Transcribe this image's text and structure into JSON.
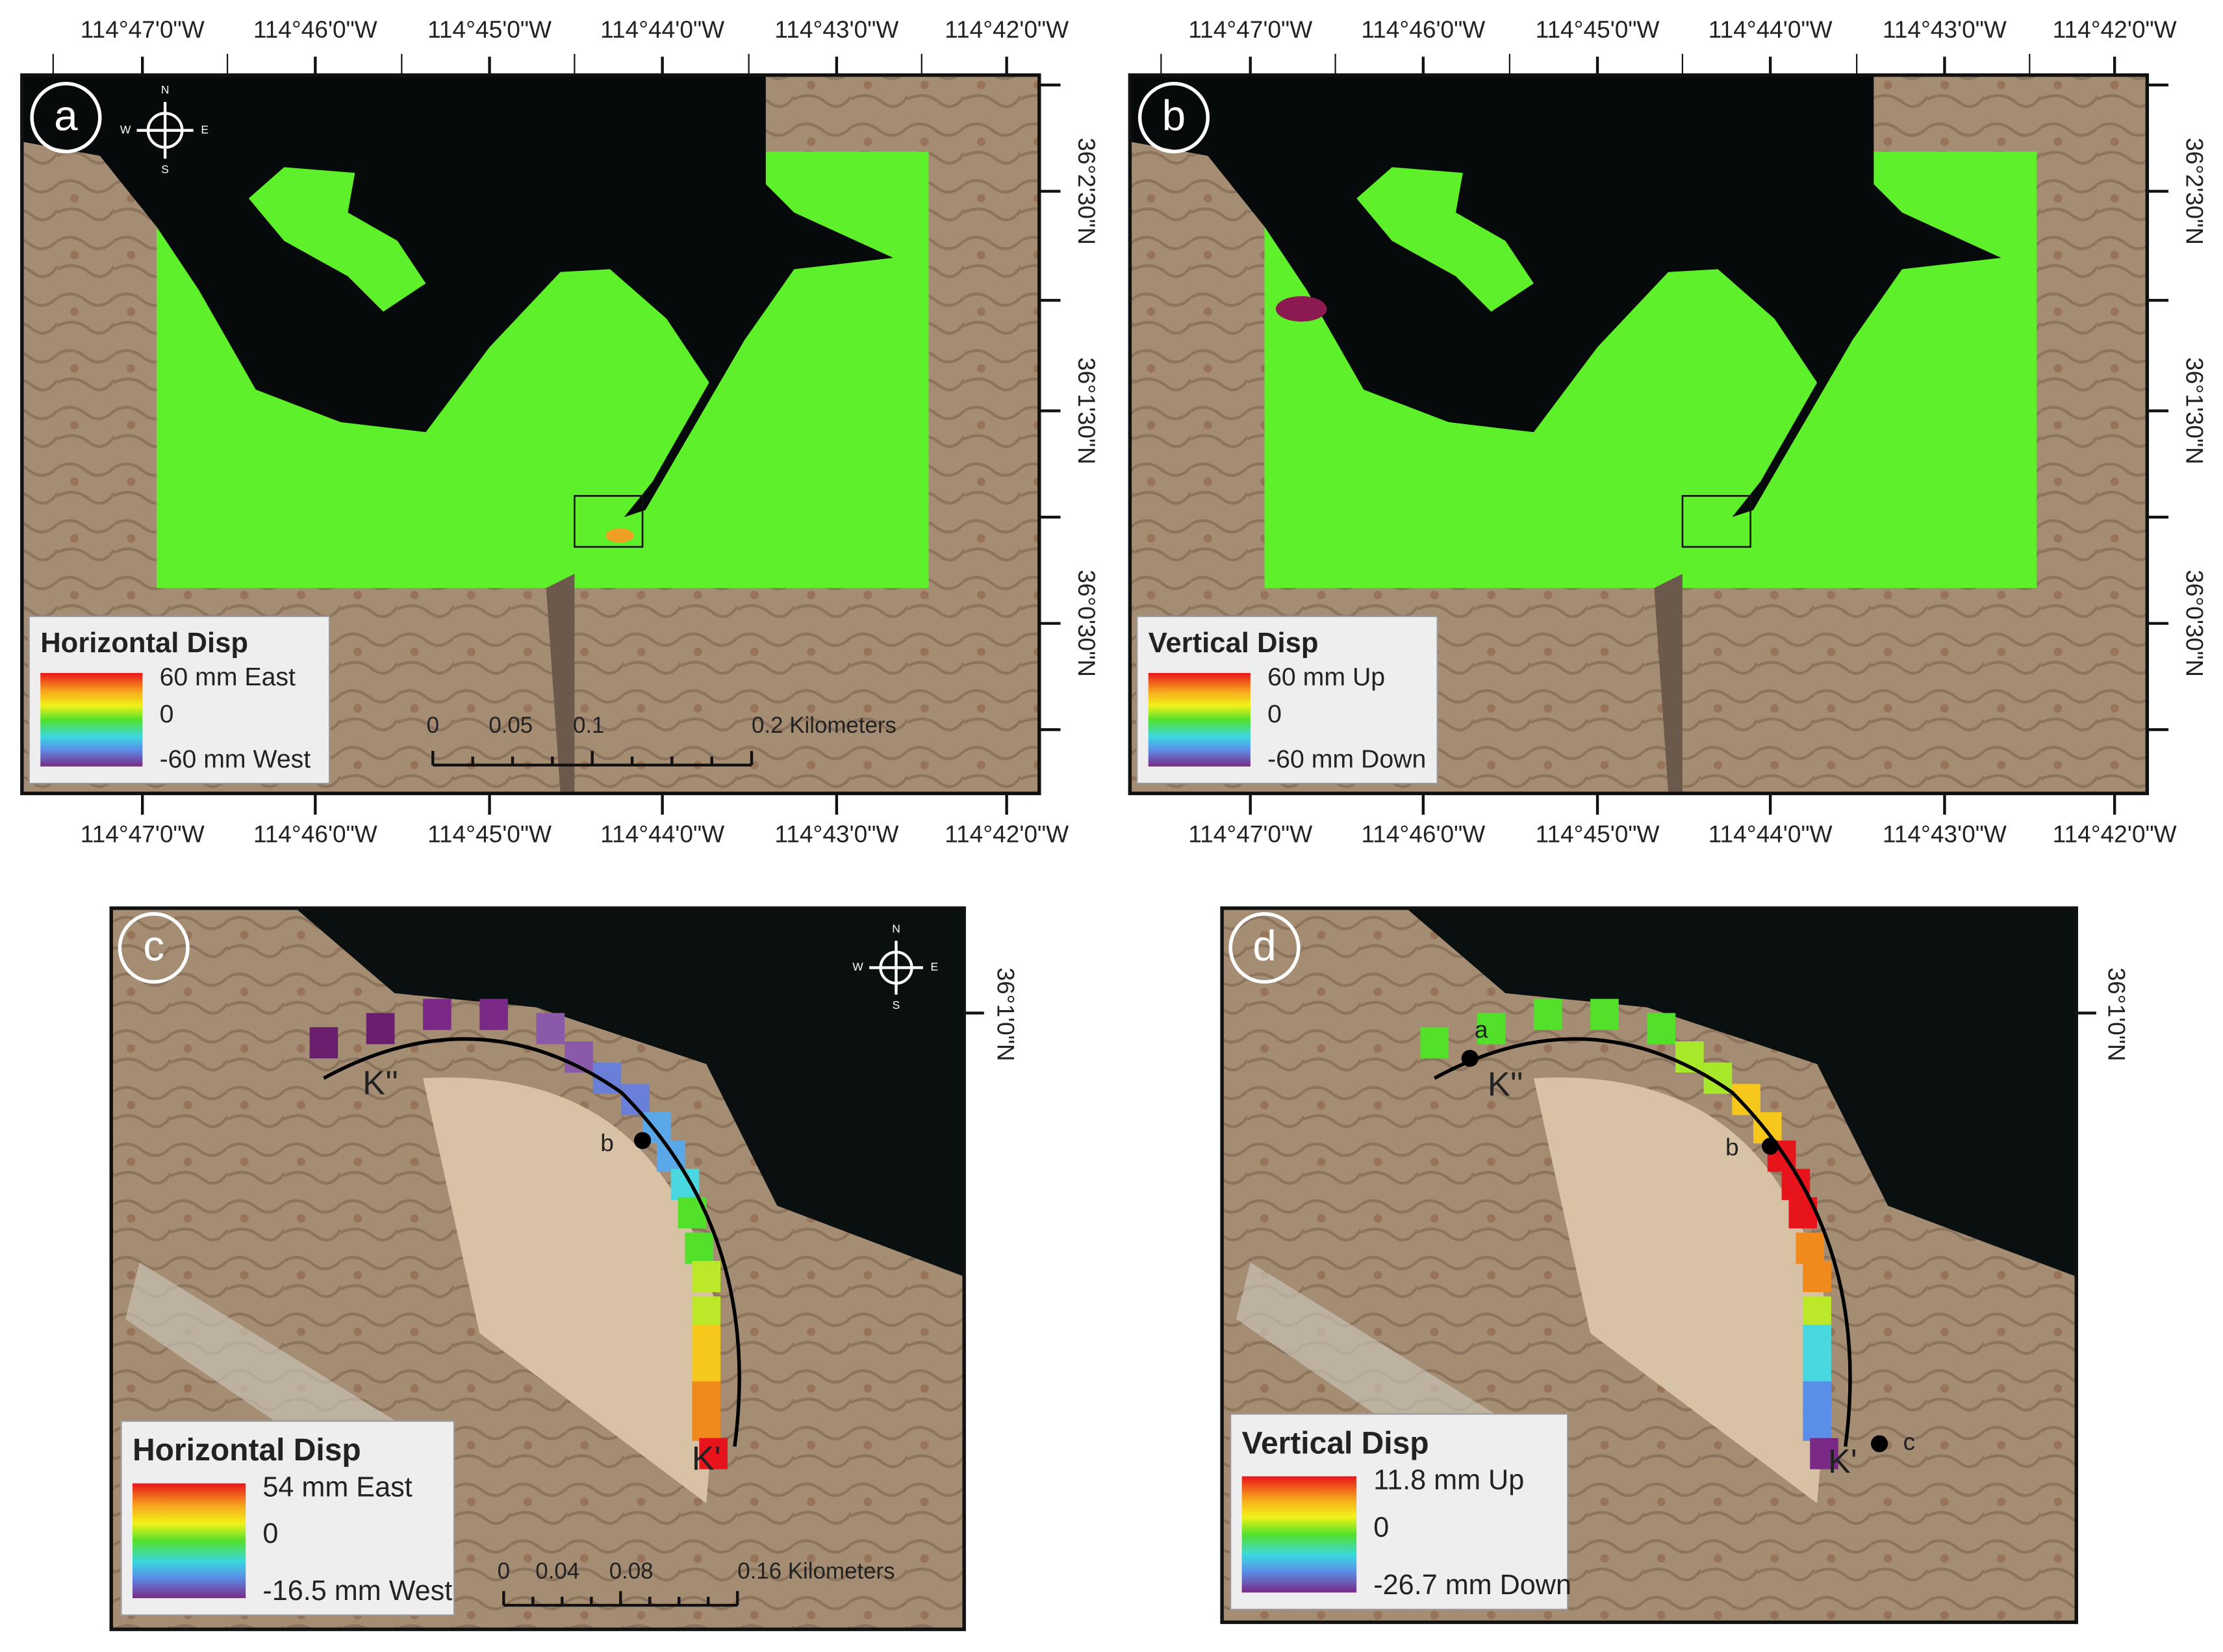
{
  "panels": [
    {
      "label": "a",
      "lon_labels": [
        "114°47'0\"W",
        "114°46'0\"W",
        "114°45'0\"W",
        "114°44'0\"W",
        "114°43'0\"W",
        "114°42'0\"W"
      ],
      "lat_labels": [
        "36°2'30\"N",
        "36°1'30\"N",
        "36°0'30\"N"
      ],
      "compass": [
        "N",
        "E",
        "S",
        "W"
      ],
      "legend": {
        "title": "Horizontal Disp",
        "labels": [
          "60 mm East",
          "0",
          "-60 mm West"
        ]
      },
      "scale_labels": [
        "0",
        "0.05",
        "0.1",
        "0.2 Kilometers"
      ]
    },
    {
      "label": "b",
      "lon_labels": [
        "114°47'0\"W",
        "114°46'0\"W",
        "114°45'0\"W",
        "114°44'0\"W",
        "114°43'0\"W",
        "114°42'0\"W"
      ],
      "lat_labels": [
        "36°2'30\"N",
        "36°1'30\"N",
        "36°0'30\"N"
      ],
      "legend": {
        "title": "Vertical Disp",
        "labels": [
          "60 mm Up",
          "0",
          "-60 mm Down"
        ]
      }
    },
    {
      "label": "c",
      "lat_labels": [
        "36°1'0\"N"
      ],
      "compass": [
        "N",
        "E",
        "S",
        "W"
      ],
      "legend": {
        "title": "Horizontal Disp",
        "labels": [
          "54 mm East",
          "0",
          "-16.5 mm West"
        ]
      },
      "scale_labels": [
        "0",
        "0.04",
        "0.08",
        "0.16 Kilometers"
      ],
      "point_labels": [
        "K''",
        "K'",
        "b"
      ]
    },
    {
      "label": "d",
      "lat_labels": [
        "36°1'0\"N"
      ],
      "legend": {
        "title": "Vertical Disp",
        "labels": [
          "11.8  mm Up",
          "0",
          "-26.7 mm Down"
        ]
      },
      "point_labels": [
        "a",
        "b",
        "c",
        "K''",
        "K'"
      ]
    }
  ]
}
